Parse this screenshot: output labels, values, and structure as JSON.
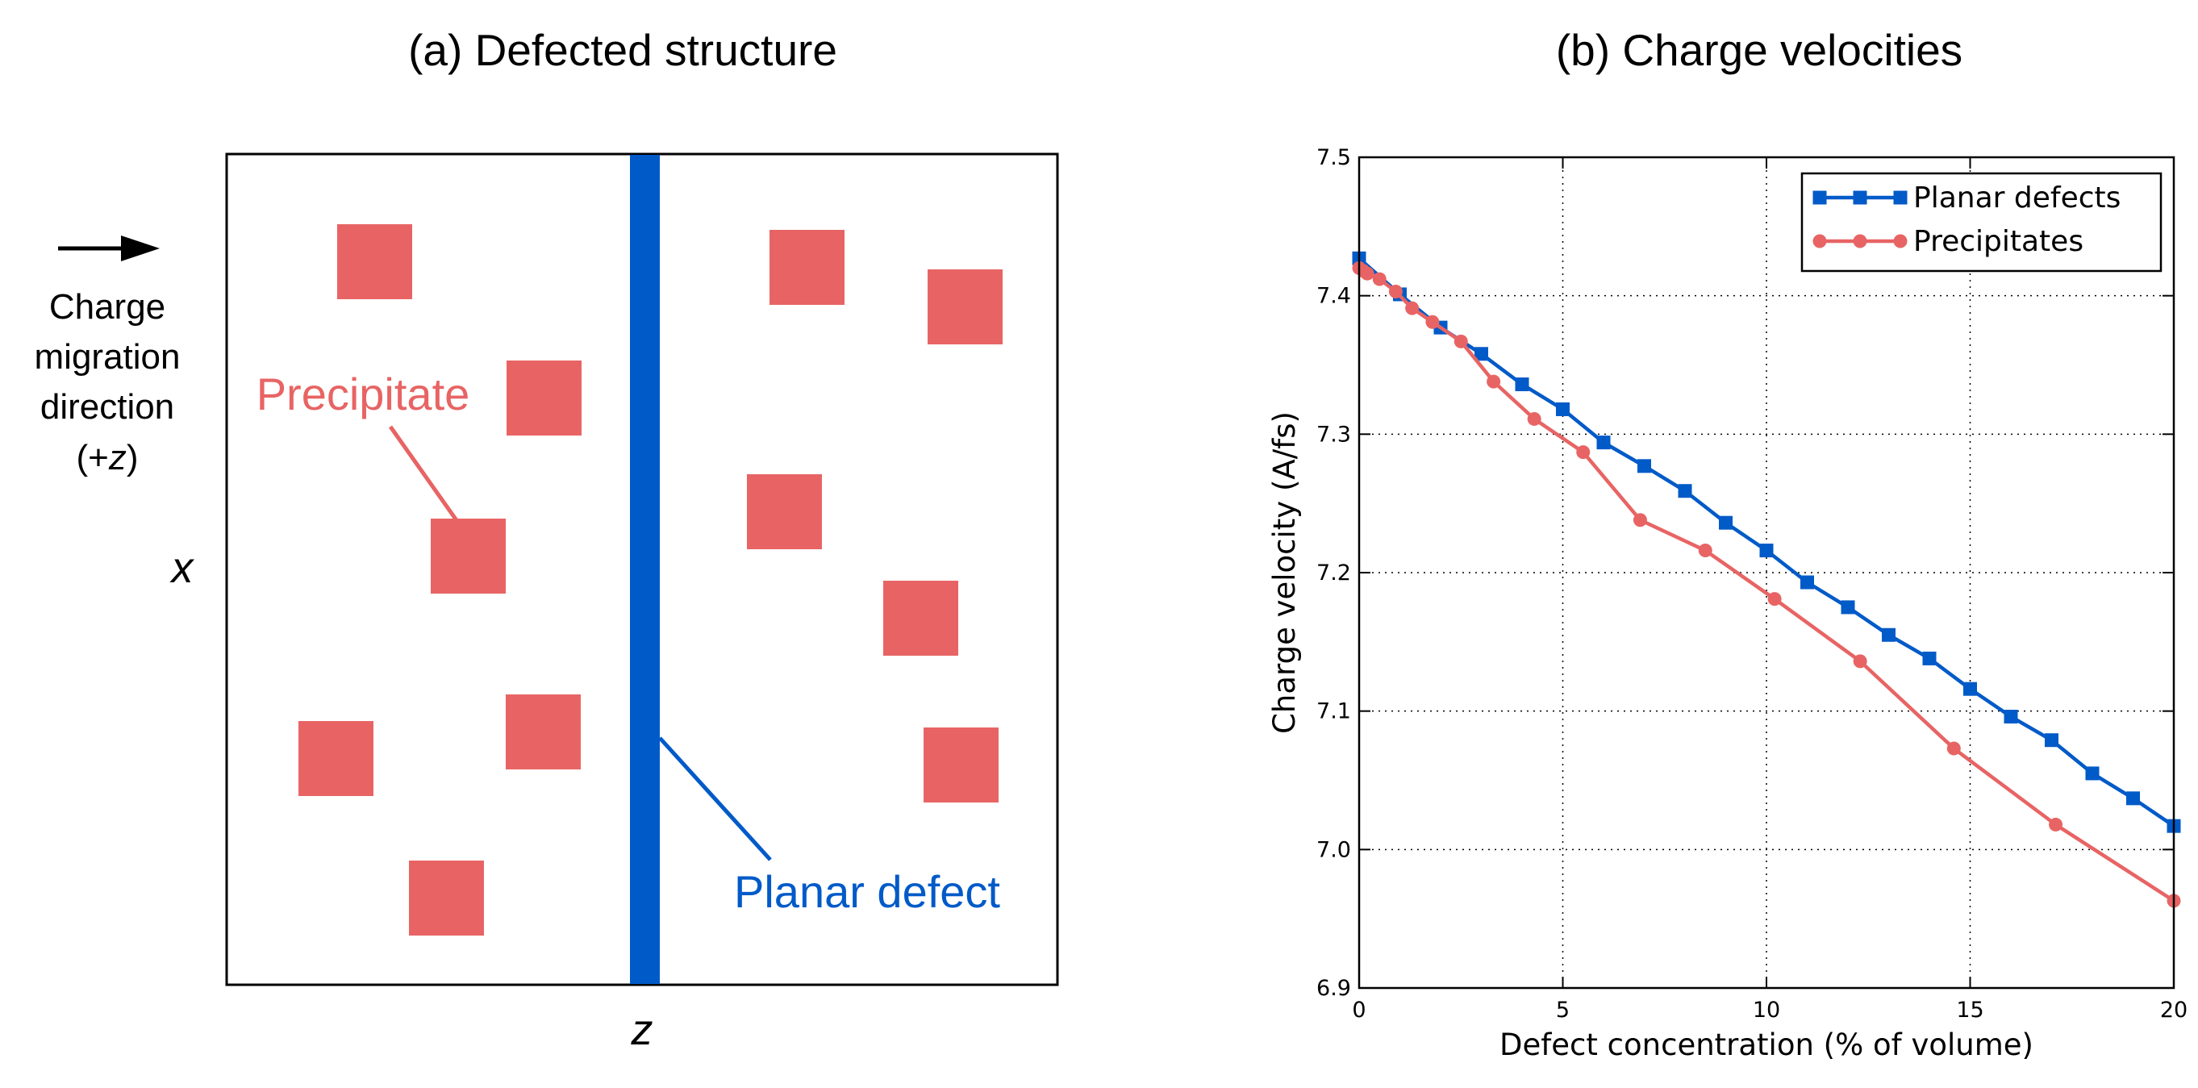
{
  "panel_a": {
    "title": "(a) Defected structure",
    "arrow_label_lines": [
      "Charge",
      "migration",
      "direction"
    ],
    "arrow_label_axis_open": "(+",
    "arrow_label_axis_var": "z",
    "arrow_label_axis_close": ")",
    "x_axis_label": "x",
    "z_axis_label": "z",
    "precipitate_label": "Precipitate",
    "planar_defect_label": "Planar defect",
    "colors": {
      "precipitate": "#e86464",
      "planar_defect": "#005ac8",
      "frame": "#000000"
    }
  },
  "chart_data": {
    "type": "line",
    "title": "(b) Charge velocities",
    "xlabel": "Defect concentration (% of volume)",
    "ylabel": "Charge velocity (A/fs)",
    "xlim": [
      0,
      20
    ],
    "ylim": [
      6.9,
      7.5
    ],
    "xticks": [
      0,
      5,
      10,
      15,
      20
    ],
    "yticks": [
      6.9,
      7.0,
      7.1,
      7.2,
      7.3,
      7.4,
      7.5
    ],
    "ytick_labels": [
      "6.9",
      "7.0",
      "7.1",
      "7.2",
      "7.3",
      "7.4",
      "7.5"
    ],
    "grid": true,
    "legend_position": "top-right",
    "series": [
      {
        "name": "Planar defects",
        "marker": "square",
        "color": "#005ac8",
        "x": [
          0,
          1,
          2,
          3,
          4,
          5,
          6,
          7,
          8,
          9,
          10,
          11,
          12,
          13,
          14,
          15,
          16,
          17,
          18,
          19,
          20
        ],
        "y": [
          7.427,
          7.401,
          7.377,
          7.358,
          7.336,
          7.318,
          7.294,
          7.277,
          7.259,
          7.236,
          7.216,
          7.193,
          7.175,
          7.155,
          7.138,
          7.116,
          7.096,
          7.079,
          7.055,
          7.037,
          7.017
        ]
      },
      {
        "name": "Precipitates",
        "marker": "circle",
        "color": "#e86464",
        "x": [
          0,
          0.1,
          0.2,
          0.5,
          0.9,
          1.3,
          1.8,
          2.5,
          3.3,
          4.3,
          5.5,
          6.9,
          8.5,
          10.2,
          12.3,
          14.6,
          17.1,
          20
        ],
        "y": [
          7.42,
          7.418,
          7.416,
          7.412,
          7.403,
          7.391,
          7.381,
          7.367,
          7.338,
          7.311,
          7.287,
          7.238,
          7.216,
          7.181,
          7.136,
          7.073,
          7.018,
          6.963
        ]
      }
    ]
  }
}
